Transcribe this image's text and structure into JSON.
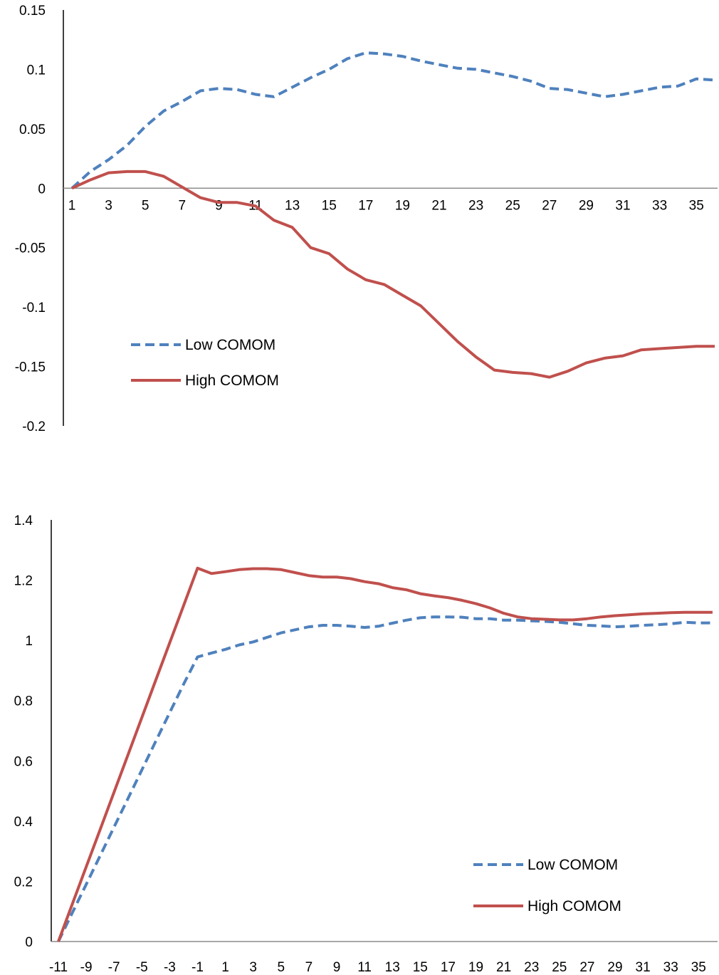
{
  "colors": {
    "low": "#4F81BD",
    "high": "#C0504D",
    "axis": "#000000",
    "zero": "#8C8C8C"
  },
  "chart_data": [
    {
      "type": "line",
      "title": "",
      "xlabel": "",
      "ylabel": "",
      "ylim": [
        -0.2,
        0.15
      ],
      "yticks": [
        "0.15",
        "0.1",
        "0.05",
        "0",
        "-0.05",
        "-0.1",
        "-0.15",
        "-0.2"
      ],
      "ytick_values": [
        0.15,
        0.1,
        0.05,
        0,
        -0.05,
        -0.1,
        -0.15,
        -0.2
      ],
      "x": [
        1,
        2,
        3,
        4,
        5,
        6,
        7,
        8,
        9,
        10,
        11,
        12,
        13,
        14,
        15,
        16,
        17,
        18,
        19,
        20,
        21,
        22,
        23,
        24,
        25,
        26,
        27,
        28,
        29,
        30,
        31,
        32,
        33,
        34,
        35,
        36
      ],
      "xtick_labels": [
        "1",
        "3",
        "5",
        "7",
        "9",
        "11",
        "13",
        "15",
        "17",
        "19",
        "21",
        "23",
        "25",
        "27",
        "29",
        "31",
        "33",
        "35"
      ],
      "legend_position": "center-left",
      "grid": false,
      "series": [
        {
          "name": "Low COMOM",
          "style": "dashed",
          "color": "#4F81BD",
          "values": [
            0.0,
            0.014,
            0.024,
            0.036,
            0.052,
            0.065,
            0.073,
            0.082,
            0.084,
            0.083,
            0.079,
            0.077,
            0.085,
            0.093,
            0.1,
            0.109,
            0.114,
            0.113,
            0.111,
            0.107,
            0.104,
            0.101,
            0.1,
            0.097,
            0.094,
            0.09,
            0.084,
            0.083,
            0.08,
            0.077,
            0.079,
            0.082,
            0.085,
            0.086,
            0.092,
            0.091
          ]
        },
        {
          "name": "High COMOM",
          "style": "solid",
          "color": "#C0504D",
          "values": [
            0.0,
            0.007,
            0.013,
            0.014,
            0.014,
            0.01,
            0.001,
            -0.008,
            -0.012,
            -0.012,
            -0.015,
            -0.027,
            -0.033,
            -0.05,
            -0.055,
            -0.068,
            -0.077,
            -0.081,
            -0.09,
            -0.099,
            -0.114,
            -0.129,
            -0.142,
            -0.153,
            -0.155,
            -0.156,
            -0.159,
            -0.154,
            -0.147,
            -0.143,
            -0.141,
            -0.136,
            -0.135,
            -0.134,
            -0.133,
            -0.133
          ]
        }
      ]
    },
    {
      "type": "line",
      "title": "",
      "xlabel": "",
      "ylabel": "",
      "ylim": [
        0,
        1.4
      ],
      "yticks": [
        "1.4",
        "1.2",
        "1",
        "0.8",
        "0.6",
        "0.4",
        "0.2",
        "0"
      ],
      "ytick_values": [
        1.4,
        1.2,
        1,
        0.8,
        0.6,
        0.4,
        0.2,
        0
      ],
      "x": [
        -11,
        -10,
        -9,
        -8,
        -7,
        -6,
        -5,
        -4,
        -3,
        -2,
        -1,
        0,
        1,
        2,
        3,
        4,
        5,
        6,
        7,
        8,
        9,
        10,
        11,
        12,
        13,
        14,
        15,
        16,
        17,
        18,
        19,
        20,
        21,
        22,
        23,
        24,
        25,
        26,
        27,
        28,
        29,
        30,
        31,
        32,
        33,
        34,
        35,
        36
      ],
      "xtick_labels": [
        "-11",
        "-9",
        "-7",
        "-5",
        "-3",
        "-1",
        "1",
        "3",
        "5",
        "7",
        "9",
        "11",
        "13",
        "15",
        "17",
        "19",
        "21",
        "23",
        "25",
        "27",
        "29",
        "31",
        "33",
        "35"
      ],
      "legend_position": "bottom-right",
      "grid": false,
      "series": [
        {
          "name": "Low COMOM",
          "style": "dashed",
          "color": "#4F81BD",
          "values": [
            0.0,
            0.095,
            0.19,
            0.285,
            0.38,
            0.475,
            0.57,
            0.665,
            0.76,
            0.855,
            0.945,
            0.958,
            0.97,
            0.985,
            0.995,
            1.01,
            1.025,
            1.035,
            1.045,
            1.05,
            1.05,
            1.047,
            1.043,
            1.047,
            1.057,
            1.067,
            1.075,
            1.078,
            1.078,
            1.077,
            1.072,
            1.072,
            1.067,
            1.067,
            1.065,
            1.063,
            1.06,
            1.055,
            1.05,
            1.048,
            1.045,
            1.047,
            1.05,
            1.052,
            1.055,
            1.06,
            1.058,
            1.058
          ]
        },
        {
          "name": "High COMOM",
          "style": "solid",
          "color": "#C0504D",
          "values": [
            0.0,
            0.124,
            0.248,
            0.372,
            0.496,
            0.62,
            0.744,
            0.868,
            0.992,
            1.116,
            1.24,
            1.222,
            1.228,
            1.235,
            1.238,
            1.238,
            1.235,
            1.225,
            1.215,
            1.21,
            1.21,
            1.205,
            1.195,
            1.188,
            1.175,
            1.168,
            1.155,
            1.148,
            1.142,
            1.133,
            1.122,
            1.108,
            1.09,
            1.078,
            1.072,
            1.07,
            1.068,
            1.068,
            1.072,
            1.078,
            1.082,
            1.085,
            1.088,
            1.09,
            1.092,
            1.093,
            1.093,
            1.093
          ]
        }
      ]
    }
  ]
}
